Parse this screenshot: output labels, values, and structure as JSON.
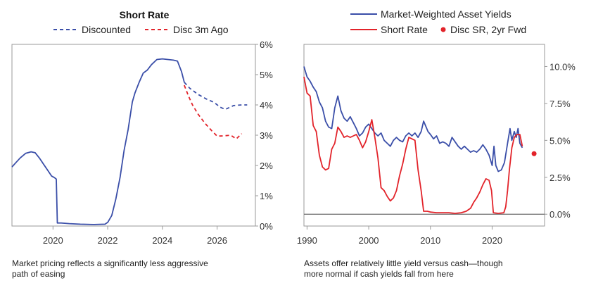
{
  "colors": {
    "blue": "#3a4ea8",
    "red": "#e2232a",
    "zero_line": "#6e6e6e",
    "border": "#999999"
  },
  "chart_data": [
    {
      "type": "line",
      "title": "Short Rate",
      "caption": [
        "Market pricing reflects a significantly less aggressive",
        "path of easing"
      ],
      "xlim": [
        2018.5,
        2027.4
      ],
      "ylim": [
        0,
        6
      ],
      "x_ticks": [
        2020,
        2022,
        2024,
        2026
      ],
      "x_tick_labels": [
        "2020",
        "2022",
        "2024",
        "2026"
      ],
      "y_ticks": [
        0,
        1,
        2,
        3,
        4,
        5,
        6
      ],
      "y_tick_labels": [
        "0%",
        "1%",
        "2%",
        "3%",
        "4%",
        "5%",
        "6%"
      ],
      "legend": [
        "Discounted",
        "Disc 3m Ago"
      ],
      "series": [
        {
          "name": "Short Rate",
          "style": "solid",
          "color": "blue",
          "points": [
            [
              2018.5,
              1.95
            ],
            [
              2018.65,
              2.1
            ],
            [
              2018.8,
              2.25
            ],
            [
              2019.0,
              2.4
            ],
            [
              2019.2,
              2.45
            ],
            [
              2019.35,
              2.42
            ],
            [
              2019.5,
              2.25
            ],
            [
              2019.65,
              2.05
            ],
            [
              2019.8,
              1.85
            ],
            [
              2019.95,
              1.65
            ],
            [
              2020.05,
              1.6
            ],
            [
              2020.12,
              1.55
            ],
            [
              2020.16,
              0.1
            ],
            [
              2020.3,
              0.1
            ],
            [
              2020.6,
              0.08
            ],
            [
              2021.0,
              0.06
            ],
            [
              2021.5,
              0.05
            ],
            [
              2021.9,
              0.06
            ],
            [
              2022.0,
              0.12
            ],
            [
              2022.15,
              0.35
            ],
            [
              2022.3,
              0.9
            ],
            [
              2022.45,
              1.6
            ],
            [
              2022.6,
              2.5
            ],
            [
              2022.75,
              3.2
            ],
            [
              2022.9,
              4.1
            ],
            [
              2023.0,
              4.4
            ],
            [
              2023.15,
              4.75
            ],
            [
              2023.3,
              5.05
            ],
            [
              2023.45,
              5.15
            ],
            [
              2023.6,
              5.33
            ],
            [
              2023.8,
              5.5
            ],
            [
              2024.0,
              5.52
            ],
            [
              2024.2,
              5.5
            ],
            [
              2024.4,
              5.48
            ],
            [
              2024.55,
              5.45
            ],
            [
              2024.7,
              5.1
            ],
            [
              2024.8,
              4.75
            ]
          ]
        },
        {
          "name": "Discounted",
          "style": "dashed",
          "color": "blue",
          "points": [
            [
              2024.8,
              4.75
            ],
            [
              2025.0,
              4.55
            ],
            [
              2025.3,
              4.35
            ],
            [
              2025.6,
              4.2
            ],
            [
              2025.9,
              4.08
            ],
            [
              2026.1,
              3.93
            ],
            [
              2026.3,
              3.85
            ],
            [
              2026.6,
              3.98
            ],
            [
              2026.9,
              4.0
            ],
            [
              2027.1,
              4.0
            ]
          ]
        },
        {
          "name": "Disc 3m Ago",
          "style": "dashed",
          "color": "red",
          "points": [
            [
              2024.8,
              4.65
            ],
            [
              2024.95,
              4.3
            ],
            [
              2025.1,
              4.0
            ],
            [
              2025.3,
              3.7
            ],
            [
              2025.55,
              3.4
            ],
            [
              2025.8,
              3.15
            ],
            [
              2026.0,
              2.97
            ],
            [
              2026.25,
              2.98
            ],
            [
              2026.5,
              3.0
            ],
            [
              2026.7,
              2.88
            ],
            [
              2026.9,
              3.05
            ]
          ]
        }
      ]
    },
    {
      "type": "line",
      "caption": [
        "Assets offer relatively little yield versus cash—though",
        "more normal if cash yields fall from here"
      ],
      "xlim": [
        1989.5,
        2028.5
      ],
      "ylim": [
        -0.8,
        11.5
      ],
      "x_ticks": [
        1990,
        2000,
        2010,
        2020
      ],
      "x_tick_labels": [
        "1990",
        "2000",
        "2010",
        "2020"
      ],
      "y_ticks": [
        0,
        2.5,
        5,
        7.5,
        10
      ],
      "y_tick_labels": [
        "0.0%",
        "2.5%",
        "5.0%",
        "7.5%",
        "10.0%"
      ],
      "zero_line": 0,
      "legend": [
        "Market-Weighted Asset Yields",
        "Short Rate",
        "Disc SR, 2yr Fwd"
      ],
      "series": [
        {
          "name": "Market-Weighted Asset Yields",
          "style": "solid",
          "color": "blue",
          "points": [
            [
              1989.5,
              10.0
            ],
            [
              1990.0,
              9.3
            ],
            [
              1990.5,
              9.0
            ],
            [
              1991.0,
              8.6
            ],
            [
              1991.5,
              8.3
            ],
            [
              1992.0,
              7.6
            ],
            [
              1992.5,
              7.2
            ],
            [
              1993.0,
              6.3
            ],
            [
              1993.5,
              5.9
            ],
            [
              1994.0,
              5.8
            ],
            [
              1994.5,
              7.2
            ],
            [
              1995.0,
              8.0
            ],
            [
              1995.5,
              7.0
            ],
            [
              1996.0,
              6.5
            ],
            [
              1996.5,
              6.3
            ],
            [
              1997.0,
              6.6
            ],
            [
              1997.5,
              6.2
            ],
            [
              1998.0,
              5.8
            ],
            [
              1998.5,
              5.3
            ],
            [
              1999.0,
              5.5
            ],
            [
              1999.5,
              5.9
            ],
            [
              2000.0,
              6.1
            ],
            [
              2000.5,
              5.8
            ],
            [
              2001.0,
              5.5
            ],
            [
              2001.5,
              5.3
            ],
            [
              2002.0,
              5.5
            ],
            [
              2002.5,
              5.0
            ],
            [
              2003.0,
              4.8
            ],
            [
              2003.5,
              4.6
            ],
            [
              2004.0,
              5.0
            ],
            [
              2004.5,
              5.2
            ],
            [
              2005.0,
              5.0
            ],
            [
              2005.5,
              4.9
            ],
            [
              2006.0,
              5.3
            ],
            [
              2006.5,
              5.5
            ],
            [
              2007.0,
              5.3
            ],
            [
              2007.5,
              5.5
            ],
            [
              2008.0,
              5.2
            ],
            [
              2008.5,
              5.6
            ],
            [
              2008.9,
              6.3
            ],
            [
              2009.2,
              6.0
            ],
            [
              2009.6,
              5.6
            ],
            [
              2010.0,
              5.4
            ],
            [
              2010.5,
              5.1
            ],
            [
              2011.0,
              5.3
            ],
            [
              2011.5,
              4.8
            ],
            [
              2012.0,
              4.9
            ],
            [
              2012.5,
              4.8
            ],
            [
              2013.0,
              4.6
            ],
            [
              2013.5,
              5.2
            ],
            [
              2014.0,
              4.9
            ],
            [
              2014.5,
              4.6
            ],
            [
              2015.0,
              4.4
            ],
            [
              2015.5,
              4.6
            ],
            [
              2016.0,
              4.4
            ],
            [
              2016.5,
              4.2
            ],
            [
              2017.0,
              4.3
            ],
            [
              2017.5,
              4.2
            ],
            [
              2018.0,
              4.4
            ],
            [
              2018.5,
              4.7
            ],
            [
              2019.0,
              4.4
            ],
            [
              2019.5,
              4.0
            ],
            [
              2020.0,
              3.3
            ],
            [
              2020.3,
              4.6
            ],
            [
              2020.6,
              3.3
            ],
            [
              2021.0,
              2.9
            ],
            [
              2021.5,
              3.0
            ],
            [
              2022.0,
              3.5
            ],
            [
              2022.5,
              4.8
            ],
            [
              2022.9,
              5.8
            ],
            [
              2023.2,
              5.0
            ],
            [
              2023.6,
              5.6
            ],
            [
              2023.9,
              5.2
            ],
            [
              2024.2,
              5.8
            ],
            [
              2024.5,
              4.8
            ],
            [
              2024.9,
              4.5
            ]
          ]
        },
        {
          "name": "Short Rate",
          "style": "solid",
          "color": "red",
          "points": [
            [
              1989.5,
              9.3
            ],
            [
              1990.0,
              8.2
            ],
            [
              1990.5,
              8.0
            ],
            [
              1991.0,
              6.0
            ],
            [
              1991.5,
              5.6
            ],
            [
              1992.0,
              4.0
            ],
            [
              1992.5,
              3.2
            ],
            [
              1993.0,
              3.0
            ],
            [
              1993.5,
              3.1
            ],
            [
              1994.0,
              4.4
            ],
            [
              1994.5,
              4.8
            ],
            [
              1995.0,
              5.9
            ],
            [
              1995.5,
              5.6
            ],
            [
              1996.0,
              5.2
            ],
            [
              1996.5,
              5.3
            ],
            [
              1997.0,
              5.2
            ],
            [
              1997.5,
              5.3
            ],
            [
              1998.0,
              5.4
            ],
            [
              1998.5,
              5.0
            ],
            [
              1999.0,
              4.5
            ],
            [
              1999.5,
              4.9
            ],
            [
              2000.0,
              5.6
            ],
            [
              2000.5,
              6.4
            ],
            [
              2001.0,
              5.2
            ],
            [
              2001.5,
              3.8
            ],
            [
              2002.0,
              1.8
            ],
            [
              2002.5,
              1.6
            ],
            [
              2003.0,
              1.2
            ],
            [
              2003.5,
              0.9
            ],
            [
              2004.0,
              1.1
            ],
            [
              2004.5,
              1.6
            ],
            [
              2005.0,
              2.6
            ],
            [
              2005.5,
              3.4
            ],
            [
              2006.0,
              4.4
            ],
            [
              2006.5,
              5.2
            ],
            [
              2007.0,
              5.1
            ],
            [
              2007.5,
              5.0
            ],
            [
              2008.0,
              3.0
            ],
            [
              2008.5,
              1.6
            ],
            [
              2008.9,
              0.2
            ],
            [
              2009.5,
              0.2
            ],
            [
              2010.0,
              0.15
            ],
            [
              2011.0,
              0.1
            ],
            [
              2012.0,
              0.1
            ],
            [
              2013.0,
              0.1
            ],
            [
              2014.0,
              0.06
            ],
            [
              2015.0,
              0.1
            ],
            [
              2015.8,
              0.2
            ],
            [
              2016.5,
              0.4
            ],
            [
              2017.0,
              0.8
            ],
            [
              2017.5,
              1.1
            ],
            [
              2018.0,
              1.5
            ],
            [
              2018.5,
              2.0
            ],
            [
              2019.0,
              2.4
            ],
            [
              2019.5,
              2.3
            ],
            [
              2019.9,
              1.6
            ],
            [
              2020.2,
              0.1
            ],
            [
              2021.0,
              0.06
            ],
            [
              2021.9,
              0.1
            ],
            [
              2022.2,
              0.5
            ],
            [
              2022.5,
              1.6
            ],
            [
              2022.8,
              3.0
            ],
            [
              2023.2,
              4.5
            ],
            [
              2023.6,
              5.2
            ],
            [
              2024.0,
              5.4
            ],
            [
              2024.5,
              5.4
            ],
            [
              2024.9,
              4.6
            ]
          ]
        }
      ],
      "points": [
        {
          "name": "Disc SR, 2yr Fwd",
          "color": "red",
          "x": 2026.8,
          "y": 4.1
        }
      ]
    }
  ]
}
